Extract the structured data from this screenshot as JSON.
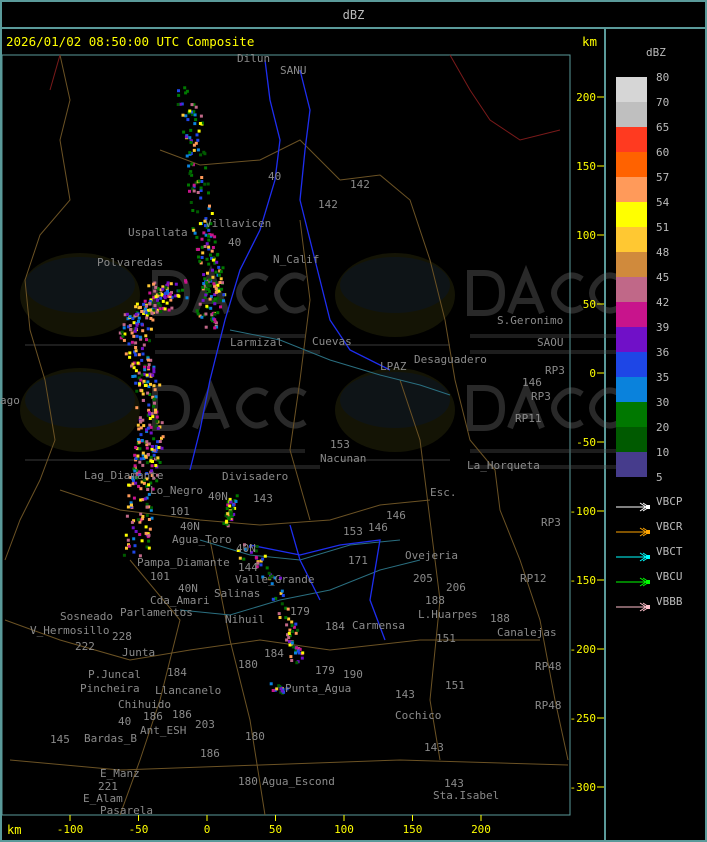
{
  "window": {
    "title": "dBZ"
  },
  "header": {
    "timestamp": "2026/01/02 08:50:00 UTC Composite",
    "unit": "km"
  },
  "axes": {
    "x_unit": "km",
    "x_ticks": [
      "-100",
      "-50",
      "0",
      "50",
      "100",
      "150",
      "200"
    ],
    "y_ticks": [
      "200",
      "150",
      "100",
      "50",
      "0",
      "-50",
      "-100",
      "-150",
      "-200",
      "-250",
      "-300"
    ]
  },
  "legend": {
    "title": "dBZ",
    "levels": [
      "80",
      "70",
      "65",
      "60",
      "57",
      "54",
      "51",
      "48",
      "45",
      "42",
      "39",
      "36",
      "35",
      "30",
      "20",
      "10",
      "5"
    ],
    "colors": [
      "#d6d6d6",
      "#bfbfbf",
      "#ff3a20",
      "#ff6200",
      "#ff9a5a",
      "#ffff00",
      "#ffc832",
      "#d08a3c",
      "#c06888",
      "#c8148c",
      "#7010c8",
      "#1e46e6",
      "#0a82dc",
      "#007800",
      "#005a00",
      "#463c8c"
    ],
    "radars": [
      {
        "name": "VBCP",
        "color": "#ffffff"
      },
      {
        "name": "VBCR",
        "color": "#ffa500"
      },
      {
        "name": "VBCT",
        "color": "#00ffff"
      },
      {
        "name": "VBCU",
        "color": "#00ff00"
      },
      {
        "name": "VBBB",
        "color": "#ffc0cb"
      }
    ]
  },
  "watermark": {
    "logo": "DACC",
    "line1": "Dirección de Agricultura",
    "line2": "y Contingencias Climáticas",
    "url": "http://www.contingencias.mendoza.gov.ar"
  },
  "map_labels": [
    "Dilun",
    "SANU",
    "40",
    "142",
    "142",
    "Villavicen",
    "Uspallata",
    "40",
    "N_Calif",
    "Polvaredas",
    "S.Geronimo",
    "SAOU",
    "Desaguadero",
    "RP3",
    "146",
    "RP3",
    "RP11",
    "Cuevas",
    "Larmizal",
    "LPAZ",
    "153",
    "Nacunan",
    "La_Horqueta",
    "Esc.",
    "Lag_Diamante",
    "Lo_Negro",
    "Divisadero",
    "143",
    "40N",
    "101",
    "40N",
    "Agua_Toro",
    "Pampa_Diamante",
    "40N",
    "101",
    "144",
    "Valle_Grande",
    "Salinas",
    "40N",
    "Cda_Amari",
    "Parlamentos",
    "Sosneado",
    "Nihuil",
    "179",
    "184",
    "205",
    "206",
    "Ovejeria",
    "L.Huarpes",
    "188",
    "171",
    "151",
    "Carmensa",
    "153",
    "146",
    "146",
    "188",
    "Canalejas",
    "RP12",
    "RP48",
    "RP48",
    "RP3",
    "V_Hermosillo",
    "222",
    "228",
    "Junta",
    "P.Juncal",
    "Pincheira",
    "184",
    "180",
    "184",
    "Llancanelo",
    "179",
    "190",
    "Punta_Agua",
    "143",
    "151",
    "Chihuido",
    "186",
    "186",
    "203",
    "Ant_ESH",
    "40",
    "180",
    "Cochico",
    "145",
    "Bardas_B",
    "186",
    "143",
    "E_Manz",
    "221",
    "E_Alam",
    "Pasarela",
    "180",
    "Agua_Escond",
    "143",
    "Sta.Isabel",
    "ago"
  ]
}
